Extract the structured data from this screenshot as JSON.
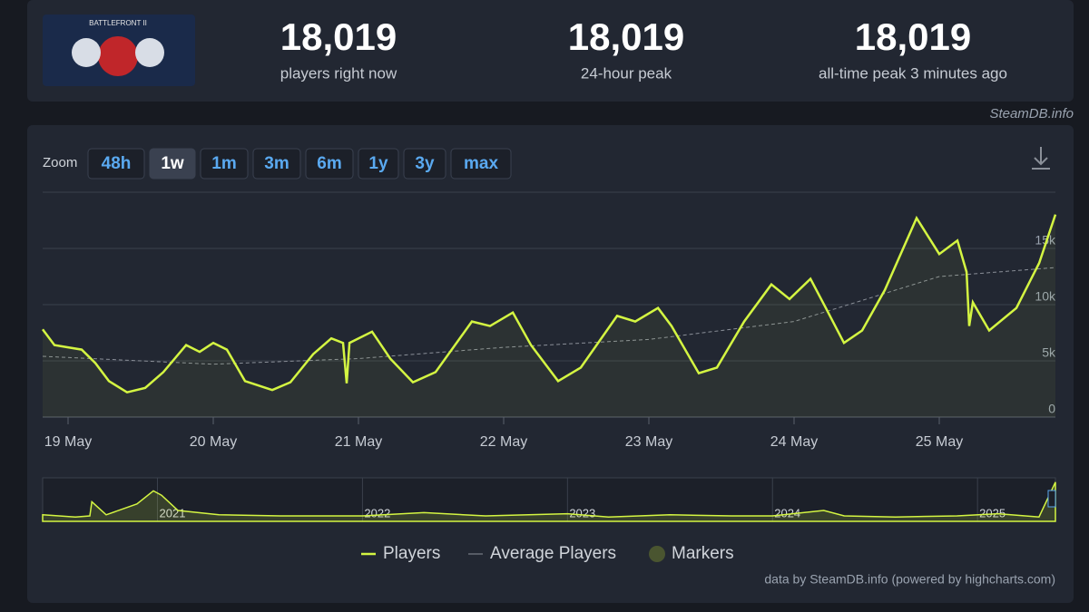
{
  "stats": [
    {
      "value": "18,019",
      "label": "players right now"
    },
    {
      "value": "18,019",
      "label": "24-hour peak"
    },
    {
      "value": "18,019",
      "label": "all-time peak 3 minutes ago"
    }
  ],
  "credit_top": "SteamDB.info",
  "zoom": {
    "label": "Zoom",
    "buttons": [
      "48h",
      "1w",
      "1m",
      "3m",
      "6m",
      "1y",
      "3y",
      "max"
    ],
    "active": 1
  },
  "chart_data": {
    "type": "line",
    "xlim": [
      18.825,
      25.8
    ],
    "xticks": [
      {
        "value": 19,
        "label": "19 May"
      },
      {
        "value": 20,
        "label": "20 May"
      },
      {
        "value": 21,
        "label": "21 May"
      },
      {
        "value": 22,
        "label": "22 May"
      },
      {
        "value": 23,
        "label": "23 May"
      },
      {
        "value": 24,
        "label": "24 May"
      },
      {
        "value": 25,
        "label": "25 May"
      }
    ],
    "ylim": [
      0,
      20000
    ],
    "yticks": [
      0,
      {
        "value": 5000,
        "label": "5k"
      },
      {
        "value": 10000,
        "label": "10k"
      },
      {
        "value": 15000,
        "label": "15k"
      },
      20000
    ],
    "grid": true,
    "series": [
      {
        "name": "Players",
        "color": "#d4f542",
        "x": [
          18.825,
          18.906,
          19,
          19.094,
          19.188,
          19.281,
          19.406,
          19.531,
          19.656,
          19.813,
          19.906,
          20,
          20.094,
          20.219,
          20.406,
          20.531,
          20.688,
          20.813,
          20.894,
          20.919,
          20.938,
          21.094,
          21.219,
          21.375,
          21.531,
          21.781,
          21.906,
          22.063,
          22.188,
          22.375,
          22.531,
          22.781,
          22.906,
          23.063,
          23.156,
          23.344,
          23.469,
          23.656,
          23.844,
          23.969,
          24.113,
          24.219,
          24.344,
          24.469,
          24.625,
          24.844,
          25,
          25.125,
          25.188,
          25.206,
          25.231,
          25.344,
          25.531,
          25.688,
          25.8
        ],
        "values": [
          7800,
          6400,
          6200,
          6000,
          4800,
          3200,
          2200,
          2600,
          4000,
          6400,
          5800,
          6600,
          6000,
          3200,
          2400,
          3100,
          5600,
          7000,
          6600,
          3000,
          6600,
          7600,
          5200,
          3100,
          4000,
          8500,
          8100,
          9300,
          6400,
          3200,
          4400,
          9000,
          8500,
          9700,
          8100,
          3900,
          4400,
          8500,
          11800,
          10500,
          12300,
          9700,
          6600,
          7700,
          11300,
          17700,
          14500,
          15700,
          12900,
          8100,
          10200,
          7700,
          9700,
          13700,
          18019
        ]
      },
      {
        "name": "Average Players",
        "color": "#8a8f98",
        "x": [
          18.825,
          20,
          21,
          22,
          23,
          24,
          24.5,
          25,
          25.8
        ],
        "values": [
          5400,
          4700,
          5200,
          6200,
          6900,
          8500,
          10500,
          12500,
          13300
        ]
      }
    ],
    "markers_legend": "Markers",
    "navigator": {
      "xlim": [
        2020.44,
        2025.38
      ],
      "xticks": [
        {
          "value": 2021,
          "label": "2021"
        },
        {
          "value": 2022,
          "label": "2022"
        },
        {
          "value": 2023,
          "label": "2023"
        },
        {
          "value": 2024,
          "label": "2024"
        },
        {
          "value": 2025,
          "label": "2025"
        }
      ],
      "ylim": [
        0,
        20000
      ],
      "x": [
        2020.44,
        2020.6,
        2020.67,
        2020.68,
        2020.75,
        2020.9,
        2020.98,
        2021.02,
        2021.1,
        2021.3,
        2021.6,
        2022,
        2022.3,
        2022.6,
        2023,
        2023.2,
        2023.5,
        2023.8,
        2024,
        2024.25,
        2024.35,
        2024.6,
        2024.9,
        2025.1,
        2025.3,
        2025.38
      ],
      "values": [
        3000,
        2000,
        2500,
        9000,
        3000,
        8000,
        14000,
        12000,
        5000,
        3000,
        2500,
        2500,
        4000,
        2500,
        3500,
        2000,
        3000,
        2500,
        2500,
        5000,
        2500,
        2000,
        2500,
        3500,
        2000,
        18019
      ]
    },
    "credit": "data by SteamDB.info (powered by highcharts.com)"
  }
}
